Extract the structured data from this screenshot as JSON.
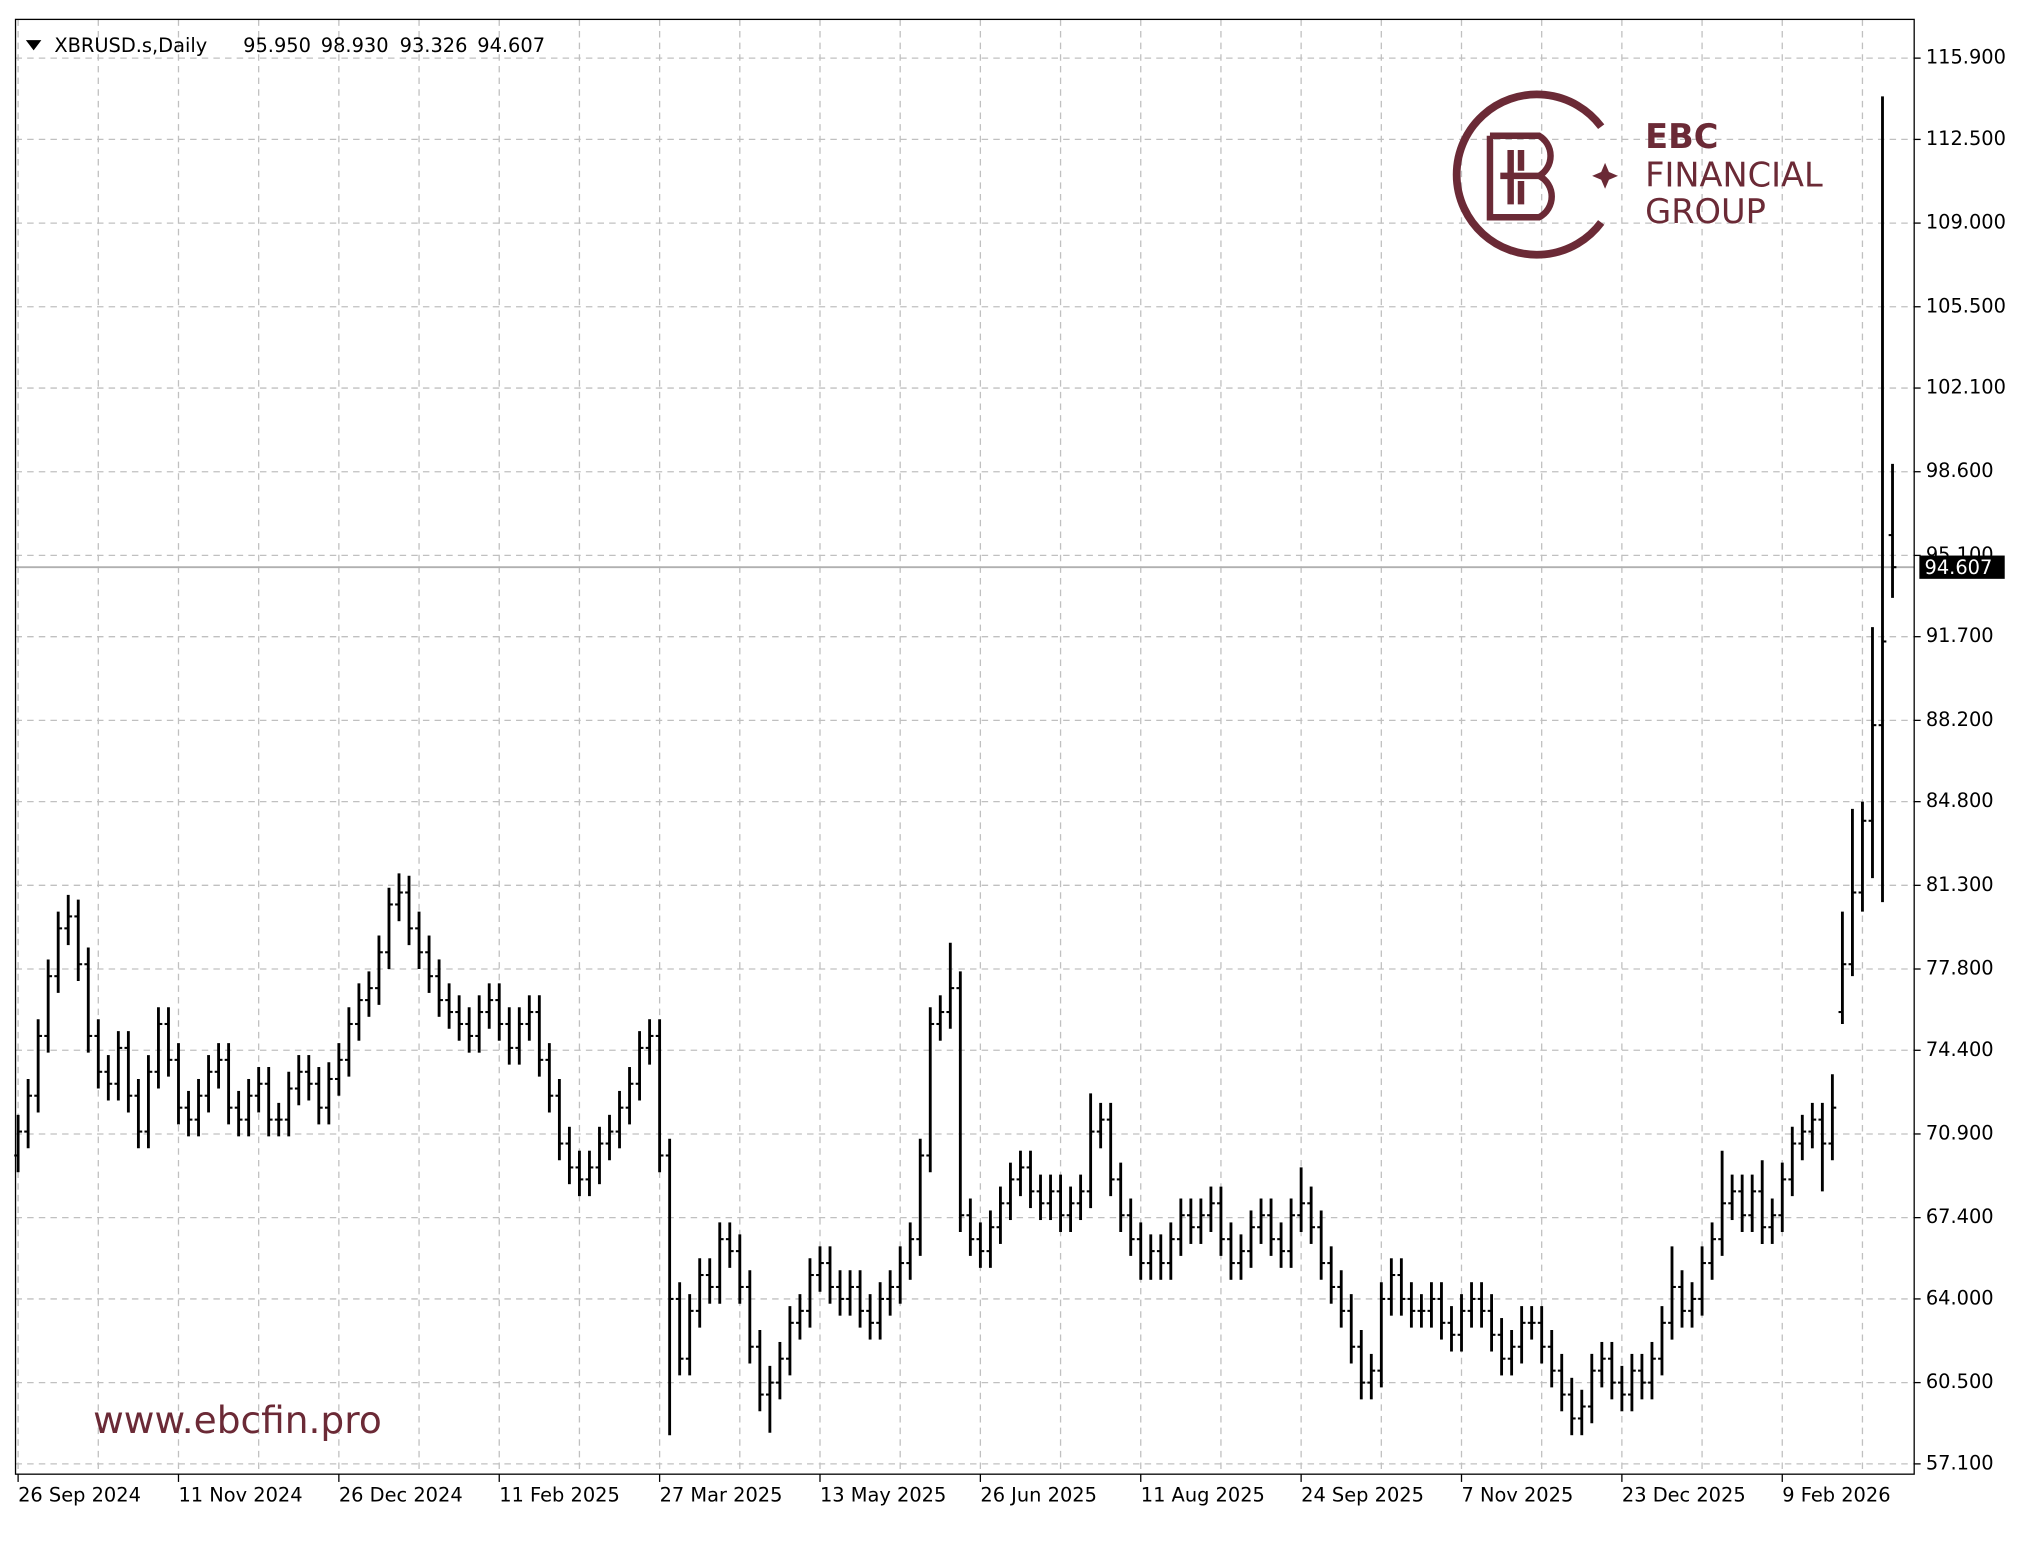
{
  "chart_data": {
    "type": "ohlc",
    "symbol": "XBRUSD.s,Daily",
    "header_values": [
      "95.950",
      "98.930",
      "93.326",
      "94.607"
    ],
    "color": "#000000",
    "grid": true,
    "ylim": [
      56.67,
      117.52
    ],
    "yticks": [
      {
        "value": 115.9,
        "label": "115.900"
      },
      {
        "value": 112.5,
        "label": "112.500"
      },
      {
        "value": 109.0,
        "label": "109.000"
      },
      {
        "value": 105.5,
        "label": "105.500"
      },
      {
        "value": 102.1,
        "label": "102.100"
      },
      {
        "value": 98.6,
        "label": "98.600"
      },
      {
        "value": 95.1,
        "label": "95.100"
      },
      {
        "value": 91.7,
        "label": "91.700"
      },
      {
        "value": 88.2,
        "label": "88.200"
      },
      {
        "value": 84.8,
        "label": "84.800"
      },
      {
        "value": 81.3,
        "label": "81.300"
      },
      {
        "value": 77.8,
        "label": "77.800"
      },
      {
        "value": 74.4,
        "label": "74.400"
      },
      {
        "value": 70.9,
        "label": "70.900"
      },
      {
        "value": 67.4,
        "label": "67.400"
      },
      {
        "value": 64.0,
        "label": "64.000"
      },
      {
        "value": 60.5,
        "label": "60.500"
      },
      {
        "value": 57.1,
        "label": "57.100"
      }
    ],
    "current_price": {
      "value": 94.607,
      "label": "94.607"
    },
    "categories": [
      "26 Sep 2024",
      null,
      null,
      null,
      null,
      null,
      null,
      null,
      null,
      null,
      null,
      null,
      null,
      null,
      null,
      null,
      "11 Nov 2024",
      null,
      null,
      null,
      null,
      null,
      null,
      null,
      null,
      null,
      null,
      null,
      null,
      null,
      null,
      null,
      "26 Dec 2024",
      null,
      null,
      null,
      null,
      null,
      null,
      null,
      null,
      null,
      null,
      null,
      null,
      null,
      null,
      null,
      "11 Feb 2025",
      null,
      null,
      null,
      null,
      null,
      null,
      null,
      null,
      null,
      null,
      null,
      null,
      null,
      null,
      null,
      "27 Mar 2025",
      null,
      null,
      null,
      null,
      null,
      null,
      null,
      null,
      null,
      null,
      null,
      null,
      null,
      null,
      null,
      "13 May 2025",
      null,
      null,
      null,
      null,
      null,
      null,
      null,
      null,
      null,
      null,
      null,
      null,
      null,
      null,
      null,
      "26 Jun 2025",
      null,
      null,
      null,
      null,
      null,
      null,
      null,
      null,
      null,
      null,
      null,
      null,
      null,
      null,
      null,
      "11 Aug 2025",
      null,
      null,
      null,
      null,
      null,
      null,
      null,
      null,
      null,
      null,
      null,
      null,
      null,
      null,
      null,
      "24 Sep 2025",
      null,
      null,
      null,
      null,
      null,
      null,
      null,
      null,
      null,
      null,
      null,
      null,
      null,
      null,
      null,
      "7 Nov 2025",
      null,
      null,
      null,
      null,
      null,
      null,
      null,
      null,
      null,
      null,
      null,
      null,
      null,
      null,
      null,
      "23 Dec 2025",
      null,
      null,
      null,
      null,
      null,
      null,
      null,
      null,
      null,
      null,
      null,
      null,
      null,
      null,
      null,
      "9 Feb 2026",
      null,
      null,
      null,
      null,
      null,
      null,
      null,
      null,
      null,
      null,
      null
    ],
    "open": [
      70.0,
      71.0,
      72.5,
      75.0,
      77.5,
      79.5,
      80.0,
      78.0,
      75.0,
      73.5,
      73.0,
      74.5,
      72.5,
      71.0,
      73.5,
      75.5,
      74.0,
      72.0,
      71.5,
      72.5,
      73.5,
      74.0,
      72.0,
      71.5,
      72.5,
      73.0,
      71.5,
      71.5,
      72.8,
      73.5,
      73.0,
      72.0,
      73.2,
      74.0,
      75.5,
      76.5,
      77.0,
      78.5,
      80.5,
      81.0,
      79.5,
      78.5,
      77.5,
      76.5,
      76.0,
      75.5,
      75.0,
      76.0,
      76.5,
      75.5,
      74.5,
      75.5,
      76.0,
      74.0,
      72.5,
      70.5,
      69.5,
      69.0,
      69.5,
      70.5,
      71.0,
      72.0,
      73.0,
      74.5,
      75.0,
      70.0,
      64.0,
      61.5,
      63.5,
      65.0,
      64.5,
      66.5,
      66.0,
      64.5,
      62.0,
      60.0,
      60.5,
      61.5,
      63.0,
      63.5,
      65.0,
      65.5,
      64.5,
      64.0,
      64.5,
      63.5,
      63.0,
      64.0,
      64.5,
      65.5,
      66.5,
      70.0,
      75.5,
      76.0,
      77.0,
      67.5,
      66.5,
      66.0,
      67.0,
      68.0,
      69.0,
      69.5,
      68.5,
      68.0,
      68.5,
      67.5,
      68.0,
      68.5,
      71.0,
      71.5,
      69.0,
      67.5,
      66.5,
      65.5,
      66.0,
      65.5,
      66.5,
      67.5,
      67.0,
      67.5,
      68.0,
      66.5,
      65.5,
      66.0,
      67.0,
      67.5,
      66.5,
      66.0,
      67.5,
      68.0,
      67.0,
      65.5,
      64.5,
      63.5,
      62.0,
      60.5,
      61.0,
      64.0,
      65.0,
      64.0,
      63.5,
      63.5,
      64.0,
      63.0,
      62.5,
      63.5,
      64.0,
      63.5,
      62.5,
      61.5,
      62.0,
      63.0,
      63.0,
      62.0,
      61.0,
      60.0,
      59.0,
      59.5,
      61.0,
      61.5,
      60.5,
      60.0,
      61.0,
      60.5,
      61.5,
      63.0,
      64.5,
      63.5,
      64.0,
      65.5,
      66.5,
      68.0,
      68.5,
      67.5,
      68.5,
      67.0,
      67.5,
      69.0,
      70.5,
      71.0,
      71.5,
      70.5,
      76.0,
      78.0,
      81.0,
      84.0,
      88.0,
      95.95
    ],
    "high": [
      71.7,
      73.2,
      75.7,
      78.2,
      80.2,
      80.9,
      80.7,
      78.7,
      75.7,
      74.2,
      75.2,
      75.2,
      73.2,
      74.2,
      76.2,
      76.2,
      74.7,
      72.7,
      73.2,
      74.2,
      74.7,
      74.7,
      72.7,
      73.2,
      73.7,
      73.7,
      72.2,
      73.5,
      74.2,
      74.2,
      73.7,
      73.9,
      74.7,
      76.2,
      77.2,
      77.7,
      79.2,
      81.2,
      81.8,
      81.7,
      80.2,
      79.2,
      78.2,
      77.2,
      76.7,
      76.2,
      76.7,
      77.2,
      77.2,
      76.2,
      76.2,
      76.7,
      76.7,
      74.7,
      73.2,
      71.2,
      70.2,
      70.2,
      71.2,
      71.7,
      72.7,
      73.7,
      75.2,
      75.7,
      75.7,
      70.7,
      64.7,
      64.2,
      65.7,
      65.7,
      67.2,
      67.2,
      66.7,
      65.2,
      62.7,
      61.2,
      62.2,
      63.7,
      64.2,
      65.7,
      66.2,
      66.2,
      65.2,
      65.2,
      65.2,
      64.2,
      64.7,
      65.2,
      66.2,
      67.2,
      70.7,
      76.2,
      76.7,
      78.9,
      77.7,
      68.2,
      67.2,
      67.7,
      68.7,
      69.7,
      70.2,
      70.2,
      69.2,
      69.2,
      69.2,
      68.7,
      69.2,
      72.6,
      72.2,
      72.2,
      69.7,
      68.2,
      67.2,
      66.7,
      66.7,
      67.2,
      68.2,
      68.2,
      68.2,
      68.7,
      68.7,
      67.2,
      66.7,
      67.7,
      68.2,
      68.2,
      67.2,
      68.2,
      69.5,
      68.7,
      67.7,
      66.2,
      65.2,
      64.2,
      62.7,
      61.7,
      64.7,
      65.7,
      65.7,
      64.7,
      64.2,
      64.7,
      64.7,
      63.7,
      64.2,
      64.7,
      64.7,
      64.2,
      63.2,
      62.7,
      63.7,
      63.7,
      63.7,
      62.7,
      61.7,
      60.7,
      60.2,
      61.7,
      62.2,
      62.2,
      61.2,
      61.7,
      61.7,
      62.2,
      63.7,
      66.2,
      65.2,
      64.7,
      66.2,
      67.2,
      70.2,
      69.2,
      69.2,
      69.2,
      69.8,
      68.2,
      69.7,
      71.2,
      71.7,
      72.2,
      72.2,
      73.4,
      80.2,
      84.5,
      84.8,
      92.1,
      114.3,
      98.93
    ],
    "low": [
      69.3,
      70.3,
      71.8,
      74.3,
      76.8,
      78.8,
      77.3,
      74.3,
      72.8,
      72.3,
      72.3,
      71.8,
      70.3,
      70.3,
      72.8,
      73.3,
      71.3,
      70.8,
      70.8,
      71.8,
      72.8,
      71.3,
      70.8,
      70.8,
      71.8,
      70.8,
      70.8,
      70.8,
      72.1,
      72.3,
      71.3,
      71.3,
      72.5,
      73.3,
      74.8,
      75.8,
      76.3,
      77.8,
      79.8,
      78.8,
      77.8,
      76.8,
      75.8,
      75.3,
      74.8,
      74.3,
      74.3,
      75.3,
      74.8,
      73.8,
      73.8,
      74.8,
      73.3,
      71.8,
      69.8,
      68.8,
      68.3,
      68.3,
      68.8,
      69.8,
      70.3,
      71.3,
      72.3,
      73.8,
      69.3,
      58.3,
      60.8,
      60.8,
      62.8,
      63.8,
      63.8,
      65.3,
      63.8,
      61.3,
      59.3,
      58.4,
      59.8,
      60.8,
      62.3,
      62.8,
      64.3,
      63.8,
      63.3,
      63.3,
      62.8,
      62.3,
      62.3,
      63.3,
      63.8,
      64.8,
      65.8,
      69.3,
      74.8,
      75.3,
      66.8,
      65.8,
      65.3,
      65.3,
      66.3,
      67.3,
      68.3,
      67.8,
      67.3,
      67.3,
      66.8,
      66.8,
      67.3,
      67.8,
      70.3,
      68.3,
      66.8,
      65.8,
      64.8,
      64.8,
      64.8,
      64.8,
      65.8,
      66.3,
      66.3,
      66.8,
      65.8,
      64.8,
      64.8,
      65.3,
      66.3,
      65.8,
      65.3,
      65.3,
      66.8,
      66.3,
      64.8,
      63.8,
      62.8,
      61.3,
      59.8,
      59.8,
      60.3,
      63.3,
      63.3,
      62.8,
      62.8,
      62.8,
      62.3,
      61.8,
      61.8,
      62.8,
      62.8,
      61.8,
      60.8,
      60.8,
      61.3,
      62.3,
      61.3,
      60.3,
      59.3,
      58.3,
      58.3,
      58.8,
      60.3,
      59.8,
      59.3,
      59.3,
      59.8,
      59.8,
      60.8,
      62.3,
      62.8,
      62.8,
      63.3,
      64.8,
      65.8,
      67.3,
      66.8,
      66.8,
      66.3,
      66.3,
      66.8,
      68.3,
      69.8,
      70.3,
      68.5,
      69.8,
      75.5,
      77.5,
      80.2,
      81.6,
      80.6,
      93.326
    ],
    "close": [
      71.0,
      72.5,
      75.0,
      77.5,
      79.5,
      80.0,
      78.0,
      75.0,
      73.5,
      73.0,
      74.5,
      72.5,
      71.0,
      73.5,
      75.5,
      74.0,
      72.0,
      71.5,
      72.5,
      73.5,
      74.0,
      72.0,
      71.5,
      72.5,
      73.0,
      71.5,
      71.5,
      72.8,
      73.5,
      73.0,
      72.0,
      73.2,
      74.0,
      75.5,
      76.5,
      77.0,
      78.5,
      80.5,
      81.0,
      79.5,
      78.5,
      77.5,
      76.5,
      76.0,
      75.5,
      75.0,
      76.0,
      76.5,
      75.5,
      74.5,
      75.5,
      76.0,
      74.0,
      72.5,
      70.5,
      69.5,
      69.0,
      69.5,
      70.5,
      71.0,
      72.0,
      73.0,
      74.5,
      75.0,
      70.0,
      64.0,
      61.5,
      63.5,
      65.0,
      64.5,
      66.5,
      66.0,
      64.5,
      62.0,
      60.0,
      60.5,
      61.5,
      63.0,
      63.5,
      65.0,
      65.5,
      64.5,
      64.0,
      64.5,
      63.5,
      63.0,
      64.0,
      64.5,
      65.5,
      66.5,
      70.0,
      75.5,
      76.0,
      77.0,
      67.5,
      66.5,
      66.0,
      67.0,
      68.0,
      69.0,
      69.5,
      68.5,
      68.0,
      68.5,
      67.5,
      68.0,
      68.5,
      71.0,
      71.5,
      69.0,
      67.5,
      66.5,
      65.5,
      66.0,
      65.5,
      66.5,
      67.5,
      67.0,
      67.5,
      68.0,
      66.5,
      65.5,
      66.0,
      67.0,
      67.5,
      66.5,
      66.0,
      67.5,
      68.0,
      67.0,
      65.5,
      64.5,
      63.5,
      62.0,
      60.5,
      61.0,
      64.0,
      65.0,
      64.0,
      63.5,
      63.5,
      64.0,
      63.0,
      62.5,
      63.5,
      64.0,
      63.5,
      62.5,
      61.5,
      62.0,
      63.0,
      63.0,
      62.0,
      61.0,
      60.0,
      59.0,
      59.5,
      61.0,
      61.5,
      60.5,
      60.0,
      61.0,
      60.5,
      61.5,
      63.0,
      64.5,
      63.5,
      64.0,
      65.5,
      66.5,
      68.0,
      68.5,
      67.5,
      68.5,
      67.0,
      67.5,
      69.0,
      70.5,
      71.0,
      71.5,
      70.5,
      72.0,
      78.0,
      81.0,
      84.0,
      88.0,
      91.5,
      94.607
    ]
  },
  "branding": {
    "logo_lines": [
      "EBC",
      "FINANCIAL",
      "GROUP"
    ],
    "website": "www.ebcfin.pro"
  }
}
